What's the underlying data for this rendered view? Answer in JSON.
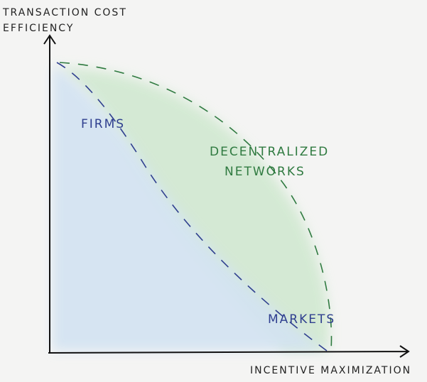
{
  "axes": {
    "y_label": [
      "TRANSACTION COST",
      "EFFICIENCY"
    ],
    "x_label": "INCENTIVE MAXIMIZATION"
  },
  "regions": [
    {
      "lines": [
        "FIRMS"
      ]
    },
    {
      "lines": [
        "DECENTRALIZED",
        "NETWORKS"
      ]
    },
    {
      "lines": [
        "MARKETS"
      ]
    }
  ]
}
